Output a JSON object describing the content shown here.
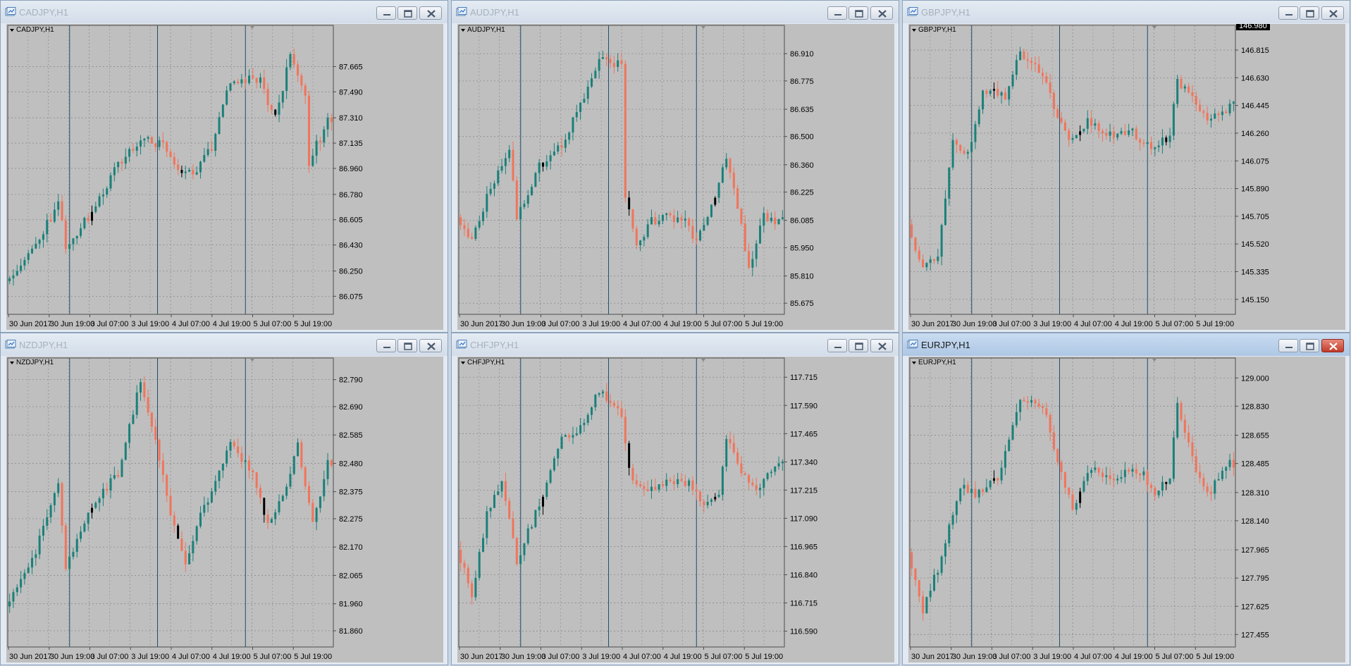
{
  "windows": [
    {
      "title": "CADJPY,H1",
      "chart_data": {
        "type": "candlestick",
        "title": "CADJPY,H1",
        "xlabel": "",
        "ylabel": "",
        "ylim": [
          85.95,
          87.95
        ],
        "yticks": [
          "87.665",
          "87.490",
          "87.310",
          "87.135",
          "86.960",
          "86.780",
          "86.605",
          "86.430",
          "86.250",
          "86.075"
        ],
        "xticks": [
          "30 Jun 2017",
          "30 Jun 19:00",
          "3 Jul 07:00",
          "3 Jul 19:00",
          "4 Jul 07:00",
          "4 Jul 19:00",
          "5 Jul 07:00",
          "5 Jul 19:00"
        ],
        "price_tag": "",
        "waypoints": [
          [
            0,
            86.18
          ],
          [
            8,
            86.42
          ],
          [
            14,
            86.74
          ],
          [
            16,
            86.4
          ],
          [
            22,
            86.62
          ],
          [
            30,
            86.98
          ],
          [
            36,
            87.15
          ],
          [
            42,
            87.12
          ],
          [
            46,
            86.95
          ],
          [
            50,
            86.9
          ],
          [
            55,
            87.1
          ],
          [
            58,
            87.38
          ],
          [
            60,
            87.55
          ],
          [
            68,
            87.58
          ],
          [
            70,
            87.4
          ],
          [
            72,
            87.3
          ],
          [
            74,
            87.5
          ],
          [
            76,
            87.75
          ],
          [
            80,
            87.45
          ],
          [
            81,
            87.0
          ],
          [
            86,
            87.3
          ]
        ],
        "seed": 11,
        "black_at": [
          22,
          46,
          71
        ],
        "down_prob": 0.42
      }
    },
    {
      "title": "AUDJPY,H1",
      "chart_data": {
        "type": "candlestick",
        "title": "AUDJPY,H1",
        "xlabel": "",
        "ylabel": "",
        "ylim": [
          85.62,
          87.05
        ],
        "yticks": [
          "86.910",
          "86.775",
          "86.635",
          "86.500",
          "86.360",
          "86.225",
          "86.085",
          "85.950",
          "85.810",
          "85.675"
        ],
        "xticks": [
          "30 Jun 2017",
          "30 Jun 19:00",
          "3 Jul 07:00",
          "3 Jul 19:00",
          "4 Jul 07:00",
          "4 Jul 19:00",
          "5 Jul 07:00",
          "5 Jul 19:00"
        ],
        "price_tag": "",
        "waypoints": [
          [
            0,
            86.1
          ],
          [
            4,
            85.98
          ],
          [
            8,
            86.2
          ],
          [
            14,
            86.45
          ],
          [
            16,
            86.1
          ],
          [
            22,
            86.35
          ],
          [
            28,
            86.45
          ],
          [
            34,
            86.7
          ],
          [
            38,
            86.88
          ],
          [
            44,
            86.85
          ],
          [
            45,
            86.2
          ],
          [
            48,
            85.96
          ],
          [
            52,
            86.08
          ],
          [
            60,
            86.1
          ],
          [
            64,
            85.98
          ],
          [
            68,
            86.15
          ],
          [
            72,
            86.4
          ],
          [
            74,
            86.25
          ],
          [
            78,
            85.85
          ],
          [
            82,
            86.1
          ],
          [
            86,
            86.08
          ]
        ],
        "seed": 23,
        "black_at": [
          22,
          45,
          68
        ],
        "down_prob": 0.44
      }
    },
    {
      "title": "GBPJPY,H1",
      "chart_data": {
        "type": "candlestick",
        "title": "GBPJPY,H1",
        "xlabel": "",
        "ylabel": "",
        "ylim": [
          145.05,
          146.98
        ],
        "yticks": [
          "146.815",
          "146.630",
          "146.445",
          "146.260",
          "146.075",
          "145.890",
          "145.705",
          "145.520",
          "145.335",
          "145.150"
        ],
        "xticks": [
          "30 Jun 2017",
          "30 Jun 19:00",
          "3 Jul 07:00",
          "3 Jul 19:00",
          "4 Jul 07:00",
          "4 Jul 19:00",
          "5 Jul 07:00",
          "5 Jul 19:00"
        ],
        "price_tag": "146.980",
        "waypoints": [
          [
            0,
            145.65
          ],
          [
            4,
            145.35
          ],
          [
            8,
            145.45
          ],
          [
            12,
            146.2
          ],
          [
            16,
            146.1
          ],
          [
            20,
            146.55
          ],
          [
            26,
            146.5
          ],
          [
            30,
            146.8
          ],
          [
            36,
            146.65
          ],
          [
            40,
            146.35
          ],
          [
            44,
            146.2
          ],
          [
            48,
            146.35
          ],
          [
            54,
            146.25
          ],
          [
            60,
            146.25
          ],
          [
            66,
            146.15
          ],
          [
            70,
            146.25
          ],
          [
            72,
            146.6
          ],
          [
            76,
            146.5
          ],
          [
            80,
            146.35
          ],
          [
            86,
            146.45
          ]
        ],
        "seed": 37,
        "black_at": [
          22,
          45,
          68
        ],
        "down_prob": 0.45
      }
    },
    {
      "title": "NZDJPY,H1",
      "chart_data": {
        "type": "candlestick",
        "title": "NZDJPY,H1",
        "xlabel": "",
        "ylabel": "",
        "ylim": [
          81.8,
          82.87
        ],
        "yticks": [
          "82.790",
          "82.690",
          "82.585",
          "82.480",
          "82.375",
          "82.275",
          "82.170",
          "82.065",
          "81.960",
          "81.860"
        ],
        "xticks": [
          "30 Jun 2017",
          "30 Jun 19:00",
          "3 Jul 07:00",
          "3 Jul 19:00",
          "4 Jul 07:00",
          "4 Jul 19:00",
          "5 Jul 07:00",
          "5 Jul 19:00"
        ],
        "price_tag": "",
        "waypoints": [
          [
            0,
            81.95
          ],
          [
            8,
            82.15
          ],
          [
            14,
            82.42
          ],
          [
            16,
            82.1
          ],
          [
            22,
            82.3
          ],
          [
            30,
            82.45
          ],
          [
            36,
            82.78
          ],
          [
            40,
            82.55
          ],
          [
            44,
            82.3
          ],
          [
            48,
            82.1
          ],
          [
            52,
            82.3
          ],
          [
            56,
            82.4
          ],
          [
            60,
            82.55
          ],
          [
            66,
            82.45
          ],
          [
            70,
            82.25
          ],
          [
            74,
            82.35
          ],
          [
            78,
            82.55
          ],
          [
            82,
            82.25
          ],
          [
            86,
            82.48
          ]
        ],
        "seed": 51,
        "black_at": [
          22,
          45,
          68
        ],
        "down_prob": 0.46
      }
    },
    {
      "title": "CHFJPY,H1",
      "chart_data": {
        "type": "candlestick",
        "title": "CHFJPY,H1",
        "xlabel": "",
        "ylabel": "",
        "ylim": [
          116.52,
          117.8
        ],
        "yticks": [
          "117.715",
          "117.590",
          "117.465",
          "117.340",
          "117.215",
          "117.090",
          "116.965",
          "116.840",
          "116.715",
          "116.590"
        ],
        "xticks": [
          "30 Jun 2017",
          "30 Jun 19:00",
          "3 Jul 07:00",
          "3 Jul 19:00",
          "4 Jul 07:00",
          "4 Jul 19:00",
          "5 Jul 07:00",
          "5 Jul 19:00"
        ],
        "price_tag": "",
        "waypoints": [
          [
            0,
            116.95
          ],
          [
            4,
            116.75
          ],
          [
            8,
            117.1
          ],
          [
            12,
            117.25
          ],
          [
            16,
            116.9
          ],
          [
            22,
            117.15
          ],
          [
            28,
            117.45
          ],
          [
            32,
            117.45
          ],
          [
            38,
            117.65
          ],
          [
            44,
            117.55
          ],
          [
            46,
            117.3
          ],
          [
            50,
            117.2
          ],
          [
            56,
            117.25
          ],
          [
            62,
            117.25
          ],
          [
            66,
            117.15
          ],
          [
            70,
            117.2
          ],
          [
            72,
            117.45
          ],
          [
            76,
            117.3
          ],
          [
            80,
            117.2
          ],
          [
            86,
            117.35
          ]
        ],
        "seed": 63,
        "black_at": [
          22,
          45,
          68
        ],
        "down_prob": 0.45
      }
    },
    {
      "title": "EURJPY,H1",
      "chart_data": {
        "type": "candlestick",
        "title": "EURJPY,H1",
        "xlabel": "",
        "ylabel": "",
        "ylim": [
          127.38,
          129.12
        ],
        "yticks": [
          "129.000",
          "128.830",
          "128.655",
          "128.485",
          "128.310",
          "128.140",
          "127.965",
          "127.795",
          "127.625",
          "127.455"
        ],
        "xticks": [
          "30 Jun 2017",
          "30 Jun 19:00",
          "3 Jul 07:00",
          "3 Jul 19:00",
          "4 Jul 07:00",
          "4 Jul 19:00",
          "5 Jul 07:00",
          "5 Jul 19:00"
        ],
        "price_tag": "",
        "waypoints": [
          [
            0,
            127.95
          ],
          [
            4,
            127.6
          ],
          [
            8,
            127.85
          ],
          [
            14,
            128.35
          ],
          [
            18,
            128.3
          ],
          [
            24,
            128.4
          ],
          [
            30,
            128.85
          ],
          [
            36,
            128.85
          ],
          [
            40,
            128.5
          ],
          [
            44,
            128.2
          ],
          [
            48,
            128.45
          ],
          [
            54,
            128.4
          ],
          [
            62,
            128.45
          ],
          [
            66,
            128.3
          ],
          [
            70,
            128.4
          ],
          [
            72,
            128.85
          ],
          [
            76,
            128.5
          ],
          [
            80,
            128.3
          ],
          [
            86,
            128.48
          ]
        ],
        "seed": 79,
        "black_at": [
          22,
          45,
          68
        ],
        "down_prob": 0.45
      }
    }
  ],
  "colors": {
    "chart_bg": "#bfbfbf",
    "up": "#1a8079",
    "down": "#f2745a",
    "grid": "#8c8c8c",
    "separator": "#1d4d6b",
    "text": "#000000",
    "frame": "#4d4d4d"
  },
  "icons": {
    "app": "chart-window-icon",
    "minimize": "minimize-icon",
    "restore": "restore-icon",
    "close": "close-icon",
    "menu": "triangle-down-icon"
  },
  "active_window": "EURJPY,H1"
}
